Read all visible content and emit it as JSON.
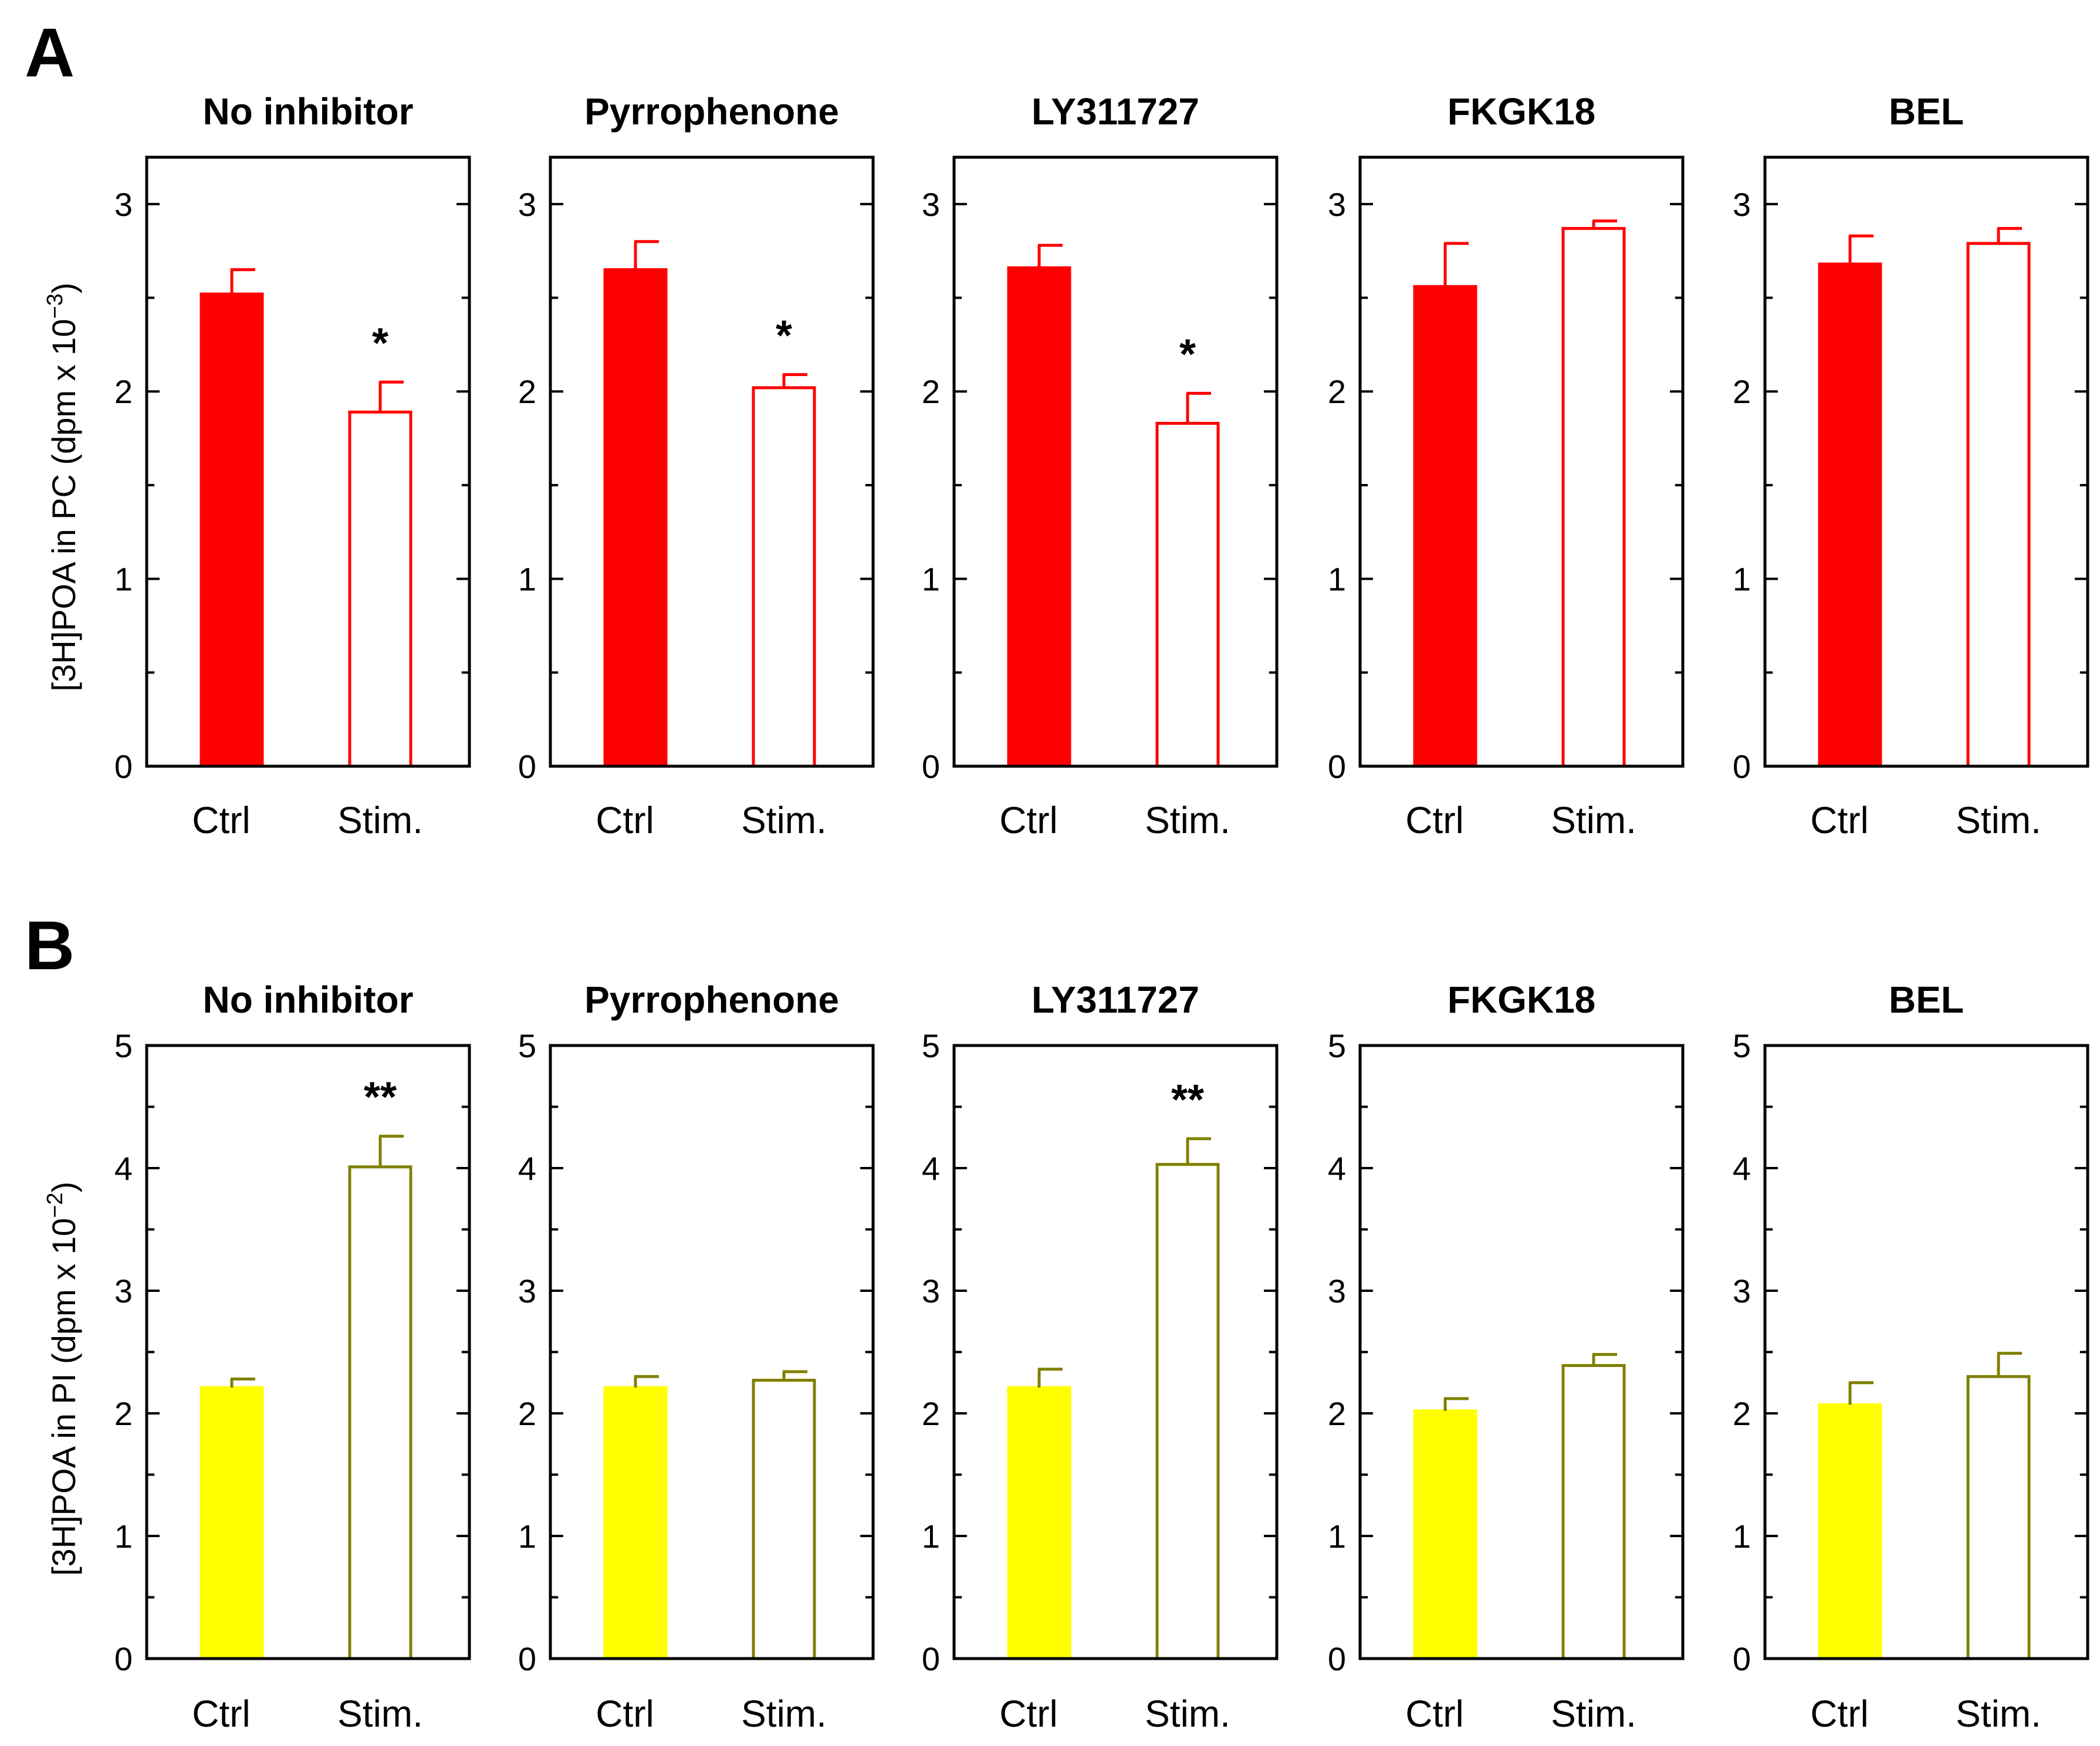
{
  "chart_data": [
    {
      "panel_label": "A",
      "ylabel": "[3H]POA in PC (dpm x 10",
      "ylabel_exponent": "−3",
      "ylabel_close": ")",
      "ylim": [
        0,
        3.25
      ],
      "yticks": [
        "0",
        "1",
        "2",
        "3"
      ],
      "colors": {
        "fill": "#ff0000",
        "stroke": "#ff0000"
      },
      "charts": [
        {
          "type": "bar",
          "title": "No inhibitor",
          "categories": [
            "Ctrl",
            "Stim."
          ],
          "values": [
            2.52,
            1.89
          ],
          "errors": [
            0.13,
            0.16
          ],
          "annotations": [
            "",
            "*"
          ]
        },
        {
          "type": "bar",
          "title": "Pyrrophenone",
          "categories": [
            "Ctrl",
            "Stim."
          ],
          "values": [
            2.65,
            2.02
          ],
          "errors": [
            0.15,
            0.07
          ],
          "annotations": [
            "",
            "*"
          ]
        },
        {
          "type": "bar",
          "title": "LY311727",
          "categories": [
            "Ctrl",
            "Stim."
          ],
          "values": [
            2.66,
            1.83
          ],
          "errors": [
            0.12,
            0.16
          ],
          "annotations": [
            "",
            "*"
          ]
        },
        {
          "type": "bar",
          "title": "FKGK18",
          "categories": [
            "Ctrl",
            "Stim."
          ],
          "values": [
            2.56,
            2.87
          ],
          "errors": [
            0.23,
            0.04
          ],
          "annotations": [
            "",
            ""
          ]
        },
        {
          "type": "bar",
          "title": "BEL",
          "categories": [
            "Ctrl",
            "Stim."
          ],
          "values": [
            2.68,
            2.79
          ],
          "errors": [
            0.15,
            0.08
          ],
          "annotations": [
            "",
            ""
          ]
        }
      ]
    },
    {
      "panel_label": "B",
      "ylabel": "[3H]POA in PI (dpm x 10",
      "ylabel_exponent": "−2",
      "ylabel_close": ")",
      "ylim": [
        0,
        5
      ],
      "yticks": [
        "0",
        "1",
        "2",
        "3",
        "4",
        "5"
      ],
      "colors": {
        "fill": "#ffff00",
        "stroke": "#808000"
      },
      "charts": [
        {
          "type": "bar",
          "title": "No inhibitor",
          "categories": [
            "Ctrl",
            "Stim."
          ],
          "values": [
            2.21,
            4.01
          ],
          "errors": [
            0.07,
            0.25
          ],
          "annotations": [
            "",
            "**"
          ]
        },
        {
          "type": "bar",
          "title": "Pyrrophenone",
          "categories": [
            "Ctrl",
            "Stim."
          ],
          "values": [
            2.21,
            2.27
          ],
          "errors": [
            0.09,
            0.07
          ],
          "annotations": [
            "",
            ""
          ]
        },
        {
          "type": "bar",
          "title": "LY311727",
          "categories": [
            "Ctrl",
            "Stim."
          ],
          "values": [
            2.21,
            4.03
          ],
          "errors": [
            0.15,
            0.21
          ],
          "annotations": [
            "",
            "**"
          ]
        },
        {
          "type": "bar",
          "title": "FKGK18",
          "categories": [
            "Ctrl",
            "Stim."
          ],
          "values": [
            2.02,
            2.39
          ],
          "errors": [
            0.1,
            0.09
          ],
          "annotations": [
            "",
            ""
          ]
        },
        {
          "type": "bar",
          "title": "BEL",
          "categories": [
            "Ctrl",
            "Stim."
          ],
          "values": [
            2.07,
            2.3
          ],
          "errors": [
            0.18,
            0.19
          ],
          "annotations": [
            "",
            ""
          ]
        }
      ]
    }
  ]
}
